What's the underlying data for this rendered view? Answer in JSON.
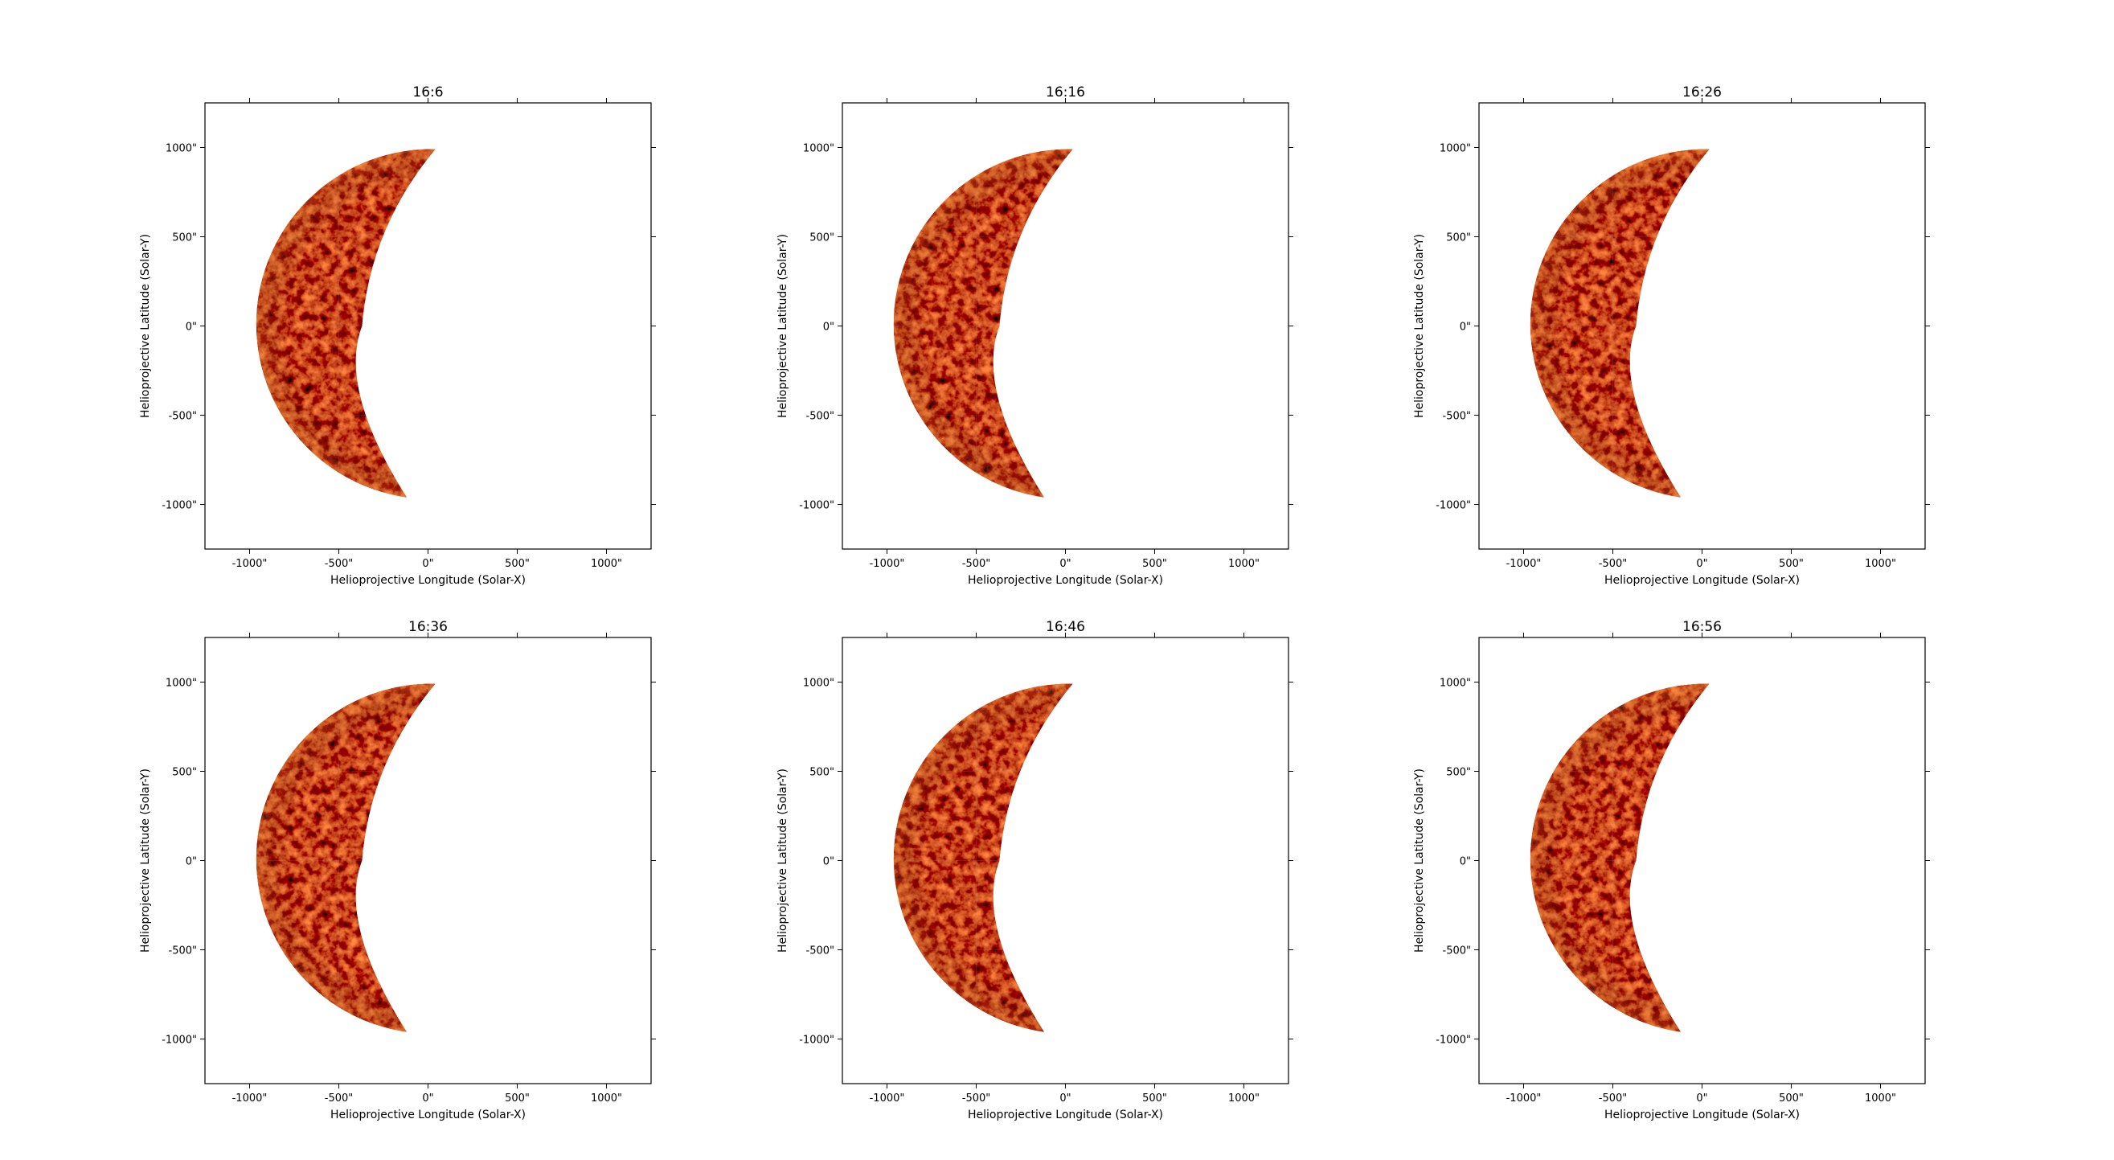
{
  "figure": {
    "axis_range_x": [
      -1250,
      1250
    ],
    "axis_range_y": [
      -1250,
      1250
    ],
    "x_ticks": [
      -1000,
      -500,
      0,
      500,
      1000
    ],
    "y_ticks": [
      -1000,
      -500,
      0,
      500,
      1000
    ],
    "x_tick_labels": [
      "-1000\"",
      "-500\"",
      "0\"",
      "500\"",
      "1000\""
    ],
    "y_tick_labels": [
      "-1000\"",
      "-500\"",
      "0\"",
      "500\"",
      "1000\""
    ],
    "xlabel": "Helioprojective Longitude (Solar-X)",
    "ylabel": "Helioprojective Latitude (Solar-Y)",
    "colormap": [
      "#000000",
      "#3b0000",
      "#7a0a00",
      "#b52d00",
      "#e6650f",
      "#ffb24d"
    ],
    "panels": [
      {
        "title": "16:6"
      },
      {
        "title": "16:16"
      },
      {
        "title": "16:26"
      },
      {
        "title": "16:36"
      },
      {
        "title": "16:46"
      },
      {
        "title": "16:56"
      }
    ]
  }
}
